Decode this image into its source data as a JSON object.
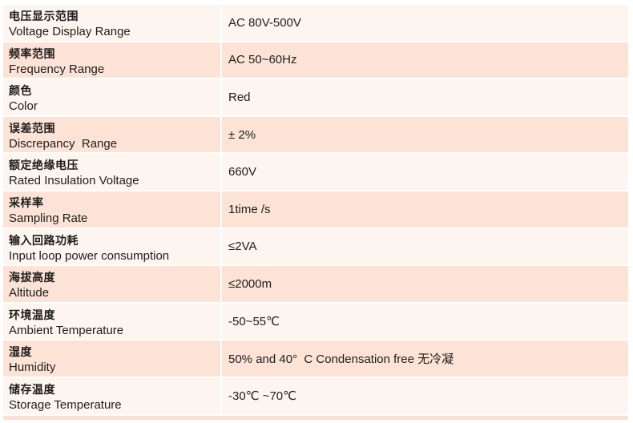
{
  "page": {
    "background": "#ffffff"
  },
  "table": {
    "colors": {
      "row_peach": "#fce3d6",
      "row_light": "#fdf5ef",
      "separator": "#ffffff",
      "text": "#1d1d1d",
      "bottom_sliver": "#fbe0d2"
    },
    "columns": [
      "label",
      "value"
    ],
    "rows": [
      {
        "label_zh": "电压显示范围",
        "label_en": "Voltage Display Range",
        "value": "AC 80V-500V",
        "shade": "light"
      },
      {
        "label_zh": "频率范围",
        "label_en": "Frequency Range",
        "value": "AC 50~60Hz",
        "shade": "peach"
      },
      {
        "label_zh": "颜色",
        "label_en": "Color",
        "value": "Red",
        "shade": "light"
      },
      {
        "label_zh": "误差范围",
        "label_en": "Discrepancy  Range",
        "value": "± 2%",
        "shade": "peach"
      },
      {
        "label_zh": "额定绝缘电压",
        "label_en": "Rated Insulation Voltage",
        "value": "660V",
        "shade": "light"
      },
      {
        "label_zh": "采样率",
        "label_en": "Sampling Rate",
        "value": "1time /s",
        "shade": "peach"
      },
      {
        "label_zh": "输入回路功耗",
        "label_en": "Input loop power consumption",
        "value": "≤2VA",
        "shade": "light"
      },
      {
        "label_zh": "海拔高度",
        "label_en": "Altitude",
        "value": "≤2000m",
        "shade": "peach"
      },
      {
        "label_zh": "环境温度",
        "label_en": "Ambient Temperature",
        "value": "-50~55℃",
        "shade": "light"
      },
      {
        "label_zh": "湿度",
        "label_en": "Humidity",
        "value": "50% and 40°  C Condensation free 无冷凝",
        "shade": "peach"
      },
      {
        "label_zh": "储存温度",
        "label_en": "Storage Temperature",
        "value": "-30℃ ~70℃",
        "shade": "light"
      }
    ]
  }
}
